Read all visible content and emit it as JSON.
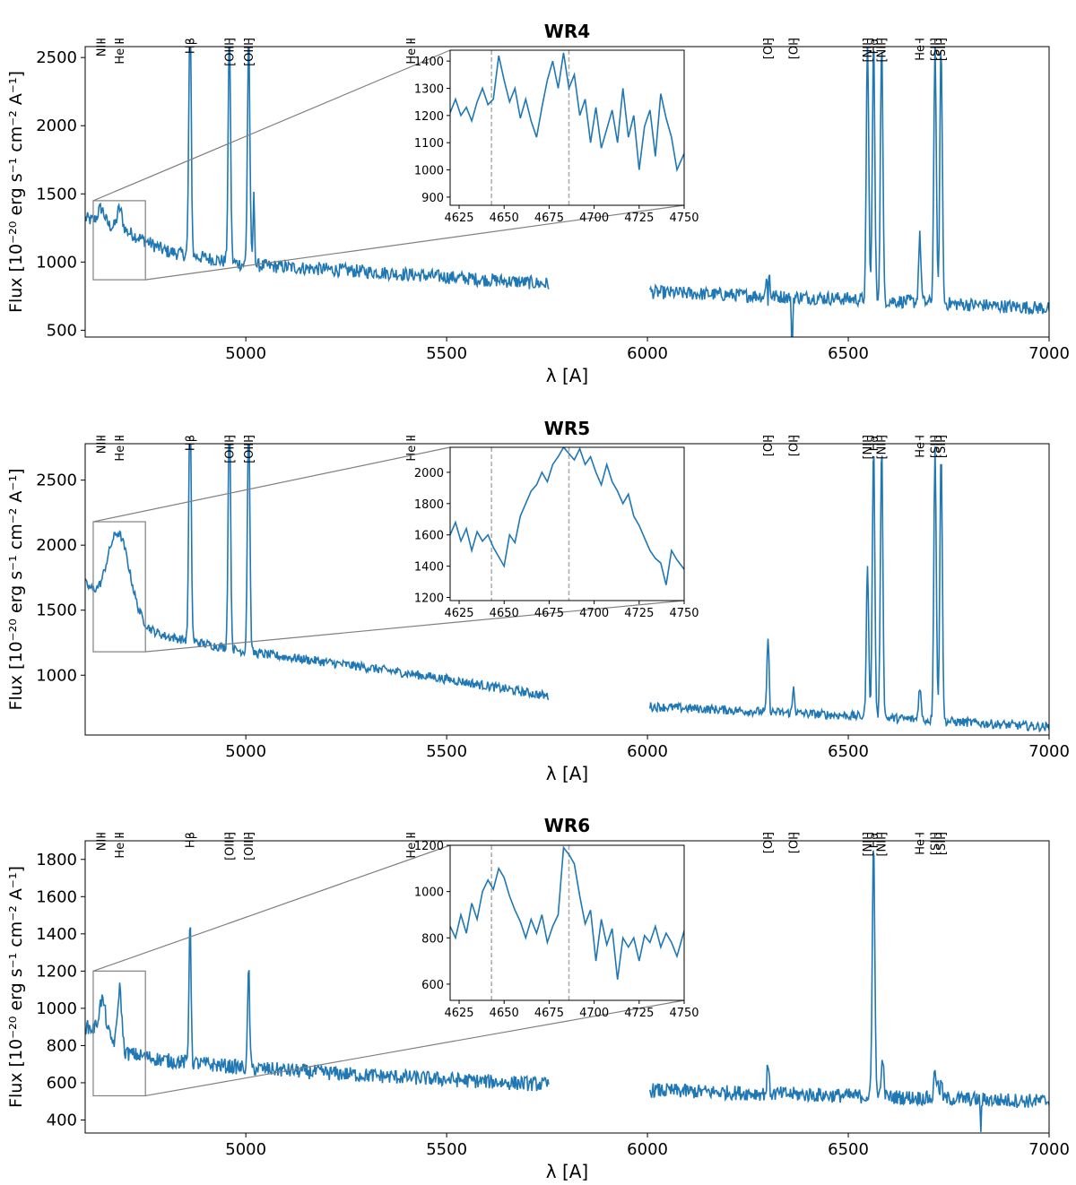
{
  "colors": {
    "series": "#1f77b4",
    "axis": "#000000",
    "zoom_box": "#808080",
    "marker_line": "#aaaaaa"
  },
  "shared": {
    "xlabel": "λ [A]",
    "ylabel": "Flux [10⁻²⁰ erg s⁻¹ cm⁻² A⁻¹]",
    "xlim": [
      4600,
      7000
    ],
    "xticks": [
      5000,
      5500,
      6000,
      6500,
      7000
    ],
    "gap": [
      5755,
      6005
    ],
    "inset_xlim": [
      4620,
      4750
    ],
    "inset_xticks": [
      4625,
      4650,
      4675,
      4700,
      4725,
      4750
    ],
    "inset_markers": [
      4643,
      4686
    ],
    "emission_lines": [
      {
        "label": "NIII",
        "wave": 4640
      },
      {
        "label": "He II",
        "wave": 4686
      },
      {
        "label": "Hβ",
        "wave": 4861
      },
      {
        "label": "[OIII]",
        "wave": 4959
      },
      {
        "label": "[OIII]",
        "wave": 5007
      },
      {
        "label": "He II",
        "wave": 5411
      },
      {
        "label": "[OI]",
        "wave": 6300
      },
      {
        "label": "[OI]",
        "wave": 6364
      },
      {
        "label": "[NII]",
        "wave": 6548
      },
      {
        "label": "Hα",
        "wave": 6563
      },
      {
        "label": "[NII]",
        "wave": 6583
      },
      {
        "label": "He I",
        "wave": 6678
      },
      {
        "label": "[SII]",
        "wave": 6716
      },
      {
        "label": "[SII]",
        "wave": 6731
      }
    ]
  },
  "chart_data": [
    {
      "type": "line",
      "title": "WR4",
      "xlabel": "λ [A]",
      "ylabel": "Flux [10⁻²⁰ erg s⁻¹ cm⁻² A⁻¹]",
      "xlim": [
        4600,
        7000
      ],
      "ylim": [
        450,
        2580
      ],
      "yticks": [
        500,
        1000,
        1500,
        2000,
        2500
      ],
      "continuum": [
        [
          4600,
          1320
        ],
        [
          4700,
          1230
        ],
        [
          4800,
          1080
        ],
        [
          5000,
          980
        ],
        [
          5300,
          930
        ],
        [
          5750,
          840
        ],
        [
          6000,
          780
        ],
        [
          6500,
          730
        ],
        [
          7000,
          660
        ]
      ],
      "noise": 50,
      "features": [
        {
          "wave": 4640,
          "amp": 110,
          "width": 8
        },
        {
          "wave": 4686,
          "amp": 150,
          "width": 6
        },
        {
          "wave": 4861,
          "amp": 1800,
          "width": 3
        },
        {
          "wave": 4959,
          "amp": 1700,
          "width": 3
        },
        {
          "wave": 5007,
          "amp": 1700,
          "width": 3
        },
        {
          "wave": 5020,
          "amp": 500,
          "width": 2
        },
        {
          "wave": 6300,
          "amp": 420,
          "width": 3
        },
        {
          "wave": 6300,
          "amp": -500,
          "width": 1.5
        },
        {
          "wave": 6360,
          "amp": -500,
          "width": 1.5
        },
        {
          "wave": 6548,
          "amp": 1900,
          "width": 3
        },
        {
          "wave": 6563,
          "amp": 1900,
          "width": 3
        },
        {
          "wave": 6583,
          "amp": 1900,
          "width": 3
        },
        {
          "wave": 6678,
          "amp": 480,
          "width": 3
        },
        {
          "wave": 6716,
          "amp": 1900,
          "width": 3
        },
        {
          "wave": 6731,
          "amp": 1900,
          "width": 3
        }
      ],
      "zoom_box": {
        "x": [
          4620,
          4750
        ],
        "y": [
          870,
          1450
        ]
      },
      "inset": {
        "xlim": [
          4620,
          4750
        ],
        "ylim": [
          870,
          1440
        ],
        "yticks": [
          900,
          1000,
          1100,
          1200,
          1300,
          1400
        ],
        "points": [
          [
            4620,
            1210
          ],
          [
            4623,
            1260
          ],
          [
            4626,
            1200
          ],
          [
            4629,
            1230
          ],
          [
            4632,
            1180
          ],
          [
            4635,
            1250
          ],
          [
            4638,
            1300
          ],
          [
            4641,
            1240
          ],
          [
            4644,
            1260
          ],
          [
            4647,
            1420
          ],
          [
            4650,
            1330
          ],
          [
            4653,
            1250
          ],
          [
            4656,
            1300
          ],
          [
            4659,
            1190
          ],
          [
            4662,
            1260
          ],
          [
            4665,
            1180
          ],
          [
            4668,
            1120
          ],
          [
            4671,
            1230
          ],
          [
            4674,
            1330
          ],
          [
            4677,
            1400
          ],
          [
            4680,
            1300
          ],
          [
            4683,
            1430
          ],
          [
            4686,
            1300
          ],
          [
            4689,
            1350
          ],
          [
            4692,
            1200
          ],
          [
            4695,
            1260
          ],
          [
            4698,
            1100
          ],
          [
            4701,
            1230
          ],
          [
            4704,
            1080
          ],
          [
            4707,
            1150
          ],
          [
            4710,
            1220
          ],
          [
            4713,
            1100
          ],
          [
            4716,
            1300
          ],
          [
            4719,
            1120
          ],
          [
            4722,
            1200
          ],
          [
            4725,
            1000
          ],
          [
            4728,
            1160
          ],
          [
            4731,
            1220
          ],
          [
            4734,
            1050
          ],
          [
            4737,
            1280
          ],
          [
            4740,
            1190
          ],
          [
            4743,
            1120
          ],
          [
            4746,
            1000
          ],
          [
            4750,
            1060
          ]
        ]
      }
    },
    {
      "type": "line",
      "title": "WR5",
      "xlabel": "λ [A]",
      "ylabel": "Flux [10⁻²⁰ erg s⁻¹ cm⁻² A⁻¹]",
      "xlim": [
        4600,
        7000
      ],
      "ylim": [
        540,
        2780
      ],
      "yticks": [
        1000,
        1500,
        2000,
        2500
      ],
      "continuum": [
        [
          4600,
          1700
        ],
        [
          4640,
          1520
        ],
        [
          4700,
          1450
        ],
        [
          4760,
          1350
        ],
        [
          4800,
          1300
        ],
        [
          5000,
          1180
        ],
        [
          5300,
          1060
        ],
        [
          5500,
          970
        ],
        [
          5750,
          840
        ],
        [
          6000,
          760
        ],
        [
          6500,
          690
        ],
        [
          7000,
          600
        ]
      ],
      "noise": 35,
      "features": [
        {
          "wave": 4682,
          "amp": 620,
          "width": 28
        },
        {
          "wave": 4861,
          "amp": 1900,
          "width": 3
        },
        {
          "wave": 4959,
          "amp": 1900,
          "width": 3
        },
        {
          "wave": 5007,
          "amp": 1900,
          "width": 3
        },
        {
          "wave": 6300,
          "amp": 580,
          "width": 2.5
        },
        {
          "wave": 6364,
          "amp": 200,
          "width": 2.5
        },
        {
          "wave": 6548,
          "amp": 1150,
          "width": 3
        },
        {
          "wave": 6563,
          "amp": 2100,
          "width": 3
        },
        {
          "wave": 6583,
          "amp": 2100,
          "width": 3
        },
        {
          "wave": 6678,
          "amp": 260,
          "width": 3
        },
        {
          "wave": 6716,
          "amp": 2100,
          "width": 3
        },
        {
          "wave": 6731,
          "amp": 2100,
          "width": 3
        }
      ],
      "zoom_box": {
        "x": [
          4620,
          4750
        ],
        "y": [
          1180,
          2180
        ]
      },
      "inset": {
        "xlim": [
          4620,
          4750
        ],
        "ylim": [
          1180,
          2160
        ],
        "yticks": [
          1200,
          1400,
          1600,
          1800,
          2000
        ],
        "points": [
          [
            4620,
            1600
          ],
          [
            4623,
            1680
          ],
          [
            4626,
            1560
          ],
          [
            4629,
            1640
          ],
          [
            4632,
            1500
          ],
          [
            4635,
            1620
          ],
          [
            4638,
            1560
          ],
          [
            4641,
            1600
          ],
          [
            4644,
            1520
          ],
          [
            4647,
            1460
          ],
          [
            4650,
            1400
          ],
          [
            4653,
            1600
          ],
          [
            4656,
            1550
          ],
          [
            4659,
            1720
          ],
          [
            4662,
            1800
          ],
          [
            4665,
            1880
          ],
          [
            4668,
            1920
          ],
          [
            4671,
            2000
          ],
          [
            4674,
            1940
          ],
          [
            4677,
            2050
          ],
          [
            4680,
            2100
          ],
          [
            4683,
            2160
          ],
          [
            4686,
            2120
          ],
          [
            4689,
            2080
          ],
          [
            4692,
            2150
          ],
          [
            4695,
            2050
          ],
          [
            4698,
            2100
          ],
          [
            4701,
            2000
          ],
          [
            4704,
            1920
          ],
          [
            4707,
            2050
          ],
          [
            4710,
            1940
          ],
          [
            4713,
            1880
          ],
          [
            4716,
            1800
          ],
          [
            4719,
            1860
          ],
          [
            4722,
            1720
          ],
          [
            4725,
            1660
          ],
          [
            4728,
            1580
          ],
          [
            4731,
            1500
          ],
          [
            4734,
            1450
          ],
          [
            4737,
            1420
          ],
          [
            4740,
            1280
          ],
          [
            4743,
            1500
          ],
          [
            4746,
            1440
          ],
          [
            4750,
            1380
          ]
        ]
      }
    },
    {
      "type": "line",
      "title": "WR6",
      "xlabel": "λ [A]",
      "ylabel": "Flux [10⁻²⁰ erg s⁻¹ cm⁻² A⁻¹]",
      "xlim": [
        4600,
        7000
      ],
      "ylim": [
        330,
        1900
      ],
      "yticks": [
        400,
        600,
        800,
        1000,
        1200,
        1400,
        1600,
        1800
      ],
      "continuum": [
        [
          4600,
          900
        ],
        [
          4640,
          880
        ],
        [
          4700,
          760
        ],
        [
          4800,
          720
        ],
        [
          5000,
          680
        ],
        [
          5300,
          640
        ],
        [
          5750,
          590
        ],
        [
          6000,
          560
        ],
        [
          6500,
          530
        ],
        [
          7000,
          500
        ]
      ],
      "noise": 40,
      "features": [
        {
          "wave": 4643,
          "amp": 170,
          "width": 8
        },
        {
          "wave": 4686,
          "amp": 320,
          "width": 5
        },
        {
          "wave": 4861,
          "amp": 800,
          "width": 2.5
        },
        {
          "wave": 5007,
          "amp": 550,
          "width": 2.5
        },
        {
          "wave": 6300,
          "amp": 160,
          "width": 2.5
        },
        {
          "wave": 6563,
          "amp": 1400,
          "width": 3
        },
        {
          "wave": 6583,
          "amp": 160,
          "width": 2.5
        },
        {
          "wave": 6588,
          "amp": 120,
          "width": 2
        },
        {
          "wave": 6716,
          "amp": 160,
          "width": 2.5
        },
        {
          "wave": 6722,
          "amp": 90,
          "width": 2
        },
        {
          "wave": 6731,
          "amp": 90,
          "width": 2.5
        },
        {
          "wave": 6830,
          "amp": -150,
          "width": 1.5
        }
      ],
      "zoom_box": {
        "x": [
          4620,
          4750
        ],
        "y": [
          530,
          1200
        ]
      },
      "inset": {
        "xlim": [
          4620,
          4750
        ],
        "ylim": [
          530,
          1200
        ],
        "yticks": [
          600,
          800,
          1000,
          1200
        ],
        "points": [
          [
            4620,
            850
          ],
          [
            4623,
            800
          ],
          [
            4626,
            900
          ],
          [
            4629,
            820
          ],
          [
            4632,
            950
          ],
          [
            4635,
            880
          ],
          [
            4638,
            1000
          ],
          [
            4641,
            1050
          ],
          [
            4644,
            1010
          ],
          [
            4647,
            1100
          ],
          [
            4650,
            1060
          ],
          [
            4653,
            980
          ],
          [
            4656,
            920
          ],
          [
            4659,
            870
          ],
          [
            4662,
            800
          ],
          [
            4665,
            880
          ],
          [
            4668,
            820
          ],
          [
            4671,
            900
          ],
          [
            4674,
            780
          ],
          [
            4677,
            850
          ],
          [
            4680,
            900
          ],
          [
            4683,
            1190
          ],
          [
            4686,
            1160
          ],
          [
            4689,
            1120
          ],
          [
            4692,
            980
          ],
          [
            4695,
            860
          ],
          [
            4698,
            920
          ],
          [
            4701,
            700
          ],
          [
            4704,
            880
          ],
          [
            4707,
            770
          ],
          [
            4710,
            840
          ],
          [
            4713,
            620
          ],
          [
            4716,
            800
          ],
          [
            4719,
            760
          ],
          [
            4722,
            800
          ],
          [
            4725,
            700
          ],
          [
            4728,
            810
          ],
          [
            4731,
            780
          ],
          [
            4734,
            850
          ],
          [
            4737,
            760
          ],
          [
            4740,
            820
          ],
          [
            4743,
            780
          ],
          [
            4746,
            720
          ],
          [
            4750,
            830
          ]
        ]
      }
    }
  ]
}
